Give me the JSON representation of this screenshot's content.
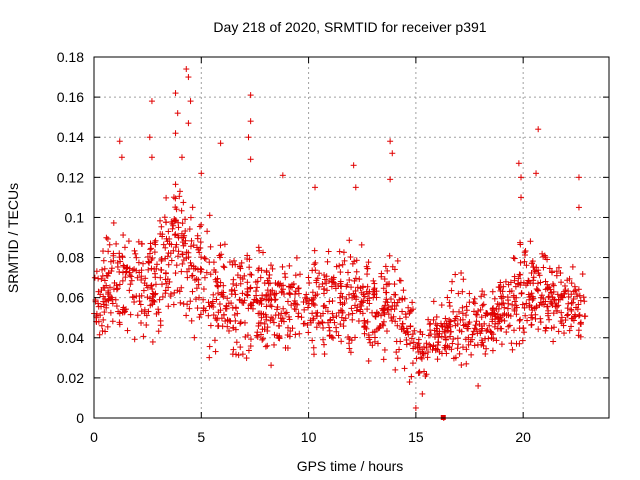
{
  "chart_data": {
    "type": "scatter",
    "title": "Day 218 of 2020, SRMTID for receiver p391",
    "xlabel": "GPS time / hours",
    "ylabel": "SRMTID / TECUs",
    "xlim": [
      0,
      24.0
    ],
    "ylim": [
      0,
      0.18
    ],
    "xticks": [
      0,
      5,
      10,
      15,
      20
    ],
    "yticks": [
      0,
      0.02,
      0.04,
      0.06,
      0.08,
      0.1,
      0.12,
      0.14,
      0.16,
      0.18
    ],
    "xtick_labels": [
      "0",
      "5",
      "10",
      "15",
      "20"
    ],
    "ytick_labels": [
      "0",
      "0.02",
      "0.04",
      "0.06",
      "0.08",
      "0.1",
      "0.12",
      "0.14",
      "0.16",
      "0.18"
    ],
    "grid": true,
    "marker": "plus",
    "color": "#e00000",
    "series": [
      {
        "name": "SRMTID",
        "envelope": [
          {
            "x": 0.0,
            "low": 0.03,
            "high": 0.09
          },
          {
            "x": 1.0,
            "low": 0.03,
            "high": 0.11
          },
          {
            "x": 2.0,
            "low": 0.03,
            "high": 0.1
          },
          {
            "x": 3.0,
            "low": 0.03,
            "high": 0.12
          },
          {
            "x": 4.0,
            "low": 0.04,
            "high": 0.13
          },
          {
            "x": 5.0,
            "low": 0.02,
            "high": 0.12
          },
          {
            "x": 6.0,
            "low": 0.02,
            "high": 0.1
          },
          {
            "x": 7.0,
            "low": 0.02,
            "high": 0.1
          },
          {
            "x": 8.0,
            "low": 0.02,
            "high": 0.09
          },
          {
            "x": 9.0,
            "low": 0.02,
            "high": 0.09
          },
          {
            "x": 10.0,
            "low": 0.02,
            "high": 0.09
          },
          {
            "x": 11.0,
            "low": 0.02,
            "high": 0.09
          },
          {
            "x": 12.0,
            "low": 0.02,
            "high": 0.1
          },
          {
            "x": 13.0,
            "low": 0.02,
            "high": 0.09
          },
          {
            "x": 14.0,
            "low": 0.02,
            "high": 0.09
          },
          {
            "x": 15.0,
            "low": 0.01,
            "high": 0.06
          },
          {
            "x": 16.0,
            "low": 0.02,
            "high": 0.06
          },
          {
            "x": 17.0,
            "low": 0.02,
            "high": 0.08
          },
          {
            "x": 18.0,
            "low": 0.02,
            "high": 0.07
          },
          {
            "x": 19.0,
            "low": 0.03,
            "high": 0.08
          },
          {
            "x": 20.0,
            "low": 0.03,
            "high": 0.1
          },
          {
            "x": 21.0,
            "low": 0.03,
            "high": 0.09
          },
          {
            "x": 22.0,
            "low": 0.03,
            "high": 0.08
          },
          {
            "x": 22.9,
            "low": 0.03,
            "high": 0.08
          }
        ],
        "peaks": [
          {
            "x": 1.2,
            "y": 0.138
          },
          {
            "x": 1.3,
            "y": 0.13
          },
          {
            "x": 2.7,
            "y": 0.158
          },
          {
            "x": 2.6,
            "y": 0.14
          },
          {
            "x": 2.7,
            "y": 0.13
          },
          {
            "x": 3.8,
            "y": 0.162
          },
          {
            "x": 3.9,
            "y": 0.152
          },
          {
            "x": 3.8,
            "y": 0.142
          },
          {
            "x": 4.3,
            "y": 0.174
          },
          {
            "x": 4.4,
            "y": 0.17
          },
          {
            "x": 4.5,
            "y": 0.158
          },
          {
            "x": 4.4,
            "y": 0.147
          },
          {
            "x": 4.1,
            "y": 0.13
          },
          {
            "x": 5.0,
            "y": 0.122
          },
          {
            "x": 5.9,
            "y": 0.137
          },
          {
            "x": 7.3,
            "y": 0.161
          },
          {
            "x": 7.3,
            "y": 0.148
          },
          {
            "x": 7.2,
            "y": 0.14
          },
          {
            "x": 7.3,
            "y": 0.129
          },
          {
            "x": 8.8,
            "y": 0.121
          },
          {
            "x": 10.3,
            "y": 0.115
          },
          {
            "x": 12.1,
            "y": 0.126
          },
          {
            "x": 12.2,
            "y": 0.115
          },
          {
            "x": 13.8,
            "y": 0.138
          },
          {
            "x": 13.9,
            "y": 0.132
          },
          {
            "x": 13.8,
            "y": 0.119
          },
          {
            "x": 19.8,
            "y": 0.127
          },
          {
            "x": 19.9,
            "y": 0.12
          },
          {
            "x": 19.9,
            "y": 0.11
          },
          {
            "x": 20.7,
            "y": 0.144
          },
          {
            "x": 20.6,
            "y": 0.122
          },
          {
            "x": 22.6,
            "y": 0.12
          },
          {
            "x": 22.6,
            "y": 0.105
          }
        ],
        "extra_points": [
          {
            "x": 15.0,
            "y": 0.005
          },
          {
            "x": 15.3,
            "y": 0.012
          },
          {
            "x": 17.9,
            "y": 0.016
          },
          {
            "x": 16.3,
            "y": 0.0
          }
        ]
      }
    ]
  }
}
